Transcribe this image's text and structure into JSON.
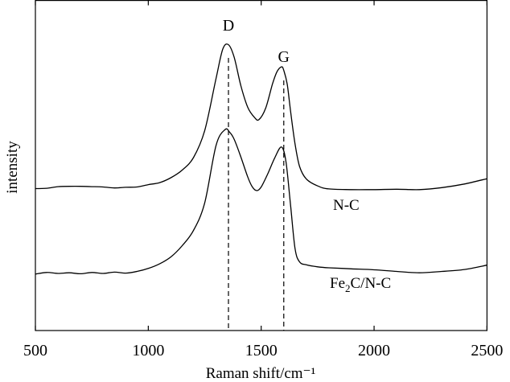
{
  "chart_data": {
    "type": "line",
    "title": "",
    "xlabel": "Raman shift/cm⁻¹",
    "ylabel": "intensity",
    "xlim": [
      500,
      2500
    ],
    "ylim": [
      0,
      100
    ],
    "xticks": [
      500,
      1000,
      1500,
      2000,
      2500
    ],
    "y_ticks_shown": false,
    "grid": false,
    "legend": "inline labels at right",
    "peak_markers": [
      {
        "label": "D",
        "x": 1355
      },
      {
        "label": "G",
        "x": 1600
      }
    ],
    "series": [
      {
        "name": "N-C",
        "label_text": "N-C",
        "x": [
          500,
          550,
          600,
          650,
          700,
          750,
          800,
          850,
          900,
          950,
          1000,
          1050,
          1100,
          1150,
          1200,
          1250,
          1300,
          1330,
          1355,
          1380,
          1410,
          1440,
          1470,
          1490,
          1520,
          1550,
          1570,
          1590,
          1600,
          1615,
          1630,
          1650,
          1670,
          1700,
          1750,
          1800,
          1900,
          2000,
          2100,
          2200,
          2300,
          2400,
          2500
        ],
        "values": [
          43.0,
          43.1,
          43.6,
          43.7,
          43.7,
          43.6,
          43.5,
          43.2,
          43.4,
          43.5,
          44.2,
          44.8,
          46.3,
          48.6,
          52.4,
          60.6,
          76.4,
          85.3,
          86.6,
          82.9,
          74.2,
          67.7,
          64.6,
          63.9,
          67.4,
          74.7,
          78.4,
          79.9,
          78.8,
          74.7,
          66.5,
          56.5,
          49.7,
          45.9,
          43.8,
          42.9,
          42.7,
          42.7,
          42.8,
          42.7,
          43.3,
          44.4,
          46.0
        ]
      },
      {
        "name": "Fe2C/N-C",
        "label_text": "Fe",
        "label_sub": "2",
        "label_rest": "C/N-C",
        "x": [
          500,
          550,
          600,
          650,
          700,
          750,
          800,
          850,
          900,
          950,
          1000,
          1050,
          1100,
          1150,
          1200,
          1250,
          1300,
          1340,
          1360,
          1380,
          1410,
          1440,
          1460,
          1480,
          1500,
          1530,
          1560,
          1590,
          1610,
          1630,
          1650,
          1670,
          1700,
          1750,
          1800,
          1900,
          2000,
          2100,
          2200,
          2300,
          2400,
          2500
        ],
        "values": [
          17.1,
          17.6,
          17.3,
          17.5,
          17.2,
          17.6,
          17.3,
          17.7,
          17.4,
          17.9,
          18.8,
          20.2,
          22.3,
          25.7,
          30.3,
          38.7,
          56.1,
          60.9,
          60.1,
          58.0,
          52.6,
          46.6,
          43.6,
          42.4,
          43.5,
          47.6,
          52.3,
          55.6,
          51.0,
          38.0,
          24.8,
          20.8,
          19.9,
          19.3,
          19.0,
          18.7,
          18.4,
          17.9,
          17.5,
          17.9,
          18.5,
          19.8
        ]
      }
    ]
  }
}
